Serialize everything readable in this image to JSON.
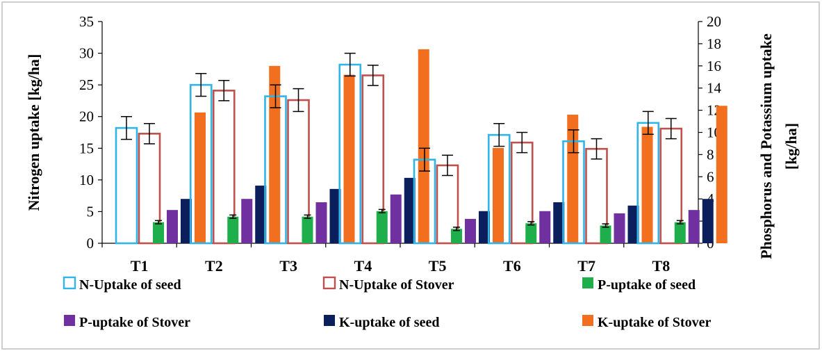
{
  "chart_data": {
    "type": "bar",
    "title": "",
    "categories": [
      "T1",
      "T2",
      "T3",
      "T4",
      "T5",
      "T6",
      "T7",
      "T8"
    ],
    "y_left": {
      "label": "Nitrogen uptake [kg/ha]",
      "min": 0,
      "max": 35,
      "step": 5
    },
    "y_right": {
      "label_line1": "Phosphorus and Potassium uptake",
      "label_line2": "[kg/ha]",
      "min": 0,
      "max": 20,
      "step": 2
    },
    "series": [
      {
        "name": "N-Uptake of seed",
        "axis": "left",
        "style": "outline",
        "color": "#2fb5e8",
        "values": [
          18.2,
          25.0,
          23.2,
          28.2,
          13.2,
          17.1,
          16.1,
          19.0
        ],
        "error": [
          1.8,
          1.8,
          1.8,
          1.8,
          1.8,
          1.8,
          1.8,
          1.8
        ]
      },
      {
        "name": "N-Uptake of Stover",
        "axis": "left",
        "style": "outline",
        "color": "#c0504d",
        "values": [
          17.3,
          24.1,
          22.6,
          26.5,
          12.3,
          15.9,
          14.9,
          18.1
        ],
        "error": [
          1.6,
          1.6,
          1.8,
          1.6,
          1.6,
          1.6,
          1.6,
          1.6
        ]
      },
      {
        "name": "P-uptake of seed",
        "axis": "right",
        "style": "fill",
        "color": "#1fae4c",
        "values": [
          1.9,
          2.4,
          2.4,
          2.9,
          1.3,
          1.8,
          1.6,
          1.9
        ],
        "error": [
          0.15,
          0.15,
          0.15,
          0.15,
          0.15,
          0.15,
          0.15,
          0.15
        ]
      },
      {
        "name": "P-uptake of Stover",
        "axis": "right",
        "style": "fill",
        "color": "#7030a0",
        "values": [
          3.0,
          4.0,
          3.7,
          4.4,
          2.2,
          2.9,
          2.7,
          3.0
        ]
      },
      {
        "name": "K-uptake of seed",
        "axis": "right",
        "style": "fill",
        "color": "#0a1f5c",
        "values": [
          4.0,
          5.2,
          4.9,
          5.9,
          2.9,
          3.7,
          3.4,
          4.0
        ]
      },
      {
        "name": "K-uptake of Stover",
        "axis": "right",
        "style": "fill",
        "color": "#f36f20",
        "values": [
          11.8,
          16.0,
          15.2,
          17.5,
          8.6,
          11.6,
          10.5,
          12.4
        ]
      }
    ],
    "legend_position": "bottom",
    "grid": false
  }
}
